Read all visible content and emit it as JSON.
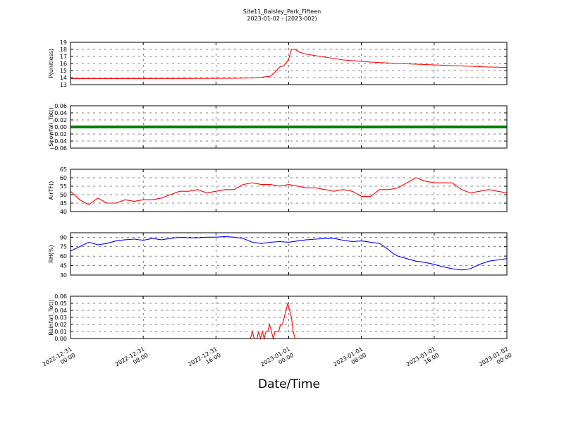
{
  "title": "Site11_Baisley_Park_Fifteen",
  "subtitle": "2023-01-02 - (2023-002)",
  "xlabel": "Date/Time",
  "x_ticks": [
    {
      "l1": "2022-12-31",
      "l2": "00:00"
    },
    {
      "l1": "2022-12-31",
      "l2": "08:00"
    },
    {
      "l1": "2022-12-31",
      "l2": "16:00"
    },
    {
      "l1": "2023-01-01",
      "l2": "00:00"
    },
    {
      "l1": "2023-01-01",
      "l2": "08:00"
    },
    {
      "l1": "2023-01-01",
      "l2": "16:00"
    },
    {
      "l1": "2023-01-02",
      "l2": "00:00"
    }
  ],
  "colors": {
    "red": "#ff0000",
    "green": "#008000",
    "blue": "#0000ff"
  },
  "chart_data": [
    {
      "type": "line",
      "ylabel": "P(unitless)",
      "xlim": [
        "2022-12-31 00:00",
        "2023-01-02 00:00"
      ],
      "ylim": [
        13,
        19
      ],
      "yticks": [
        "13",
        "14",
        "15",
        "16",
        "17",
        "18",
        "19"
      ],
      "grid": true,
      "color": "red",
      "series": [
        {
          "x_hours": [
            0,
            6,
            12,
            18,
            20,
            21,
            22,
            22.5,
            23,
            23.5,
            24,
            24.3,
            24.7,
            25.2,
            26,
            28,
            30,
            33,
            36,
            40,
            44,
            46,
            48
          ],
          "y": [
            13.85,
            13.85,
            13.87,
            13.9,
            13.95,
            14.05,
            14.2,
            14.8,
            15.5,
            15.7,
            16.6,
            18.0,
            18.0,
            17.6,
            17.3,
            16.9,
            16.5,
            16.2,
            16.0,
            15.8,
            15.6,
            15.5,
            15.45
          ]
        }
      ]
    },
    {
      "type": "line",
      "ylabel": "Snowfall_Tot()",
      "xlim": [
        "2022-12-31 00:00",
        "2023-01-02 00:00"
      ],
      "ylim": [
        -0.06,
        0.06
      ],
      "yticks": [
        "−0.06",
        "−0.04",
        "−0.02",
        "0.00",
        "0.02",
        "0.04",
        "0.06"
      ],
      "grid": true,
      "color": "green",
      "series": [
        {
          "x_hours": [
            0,
            48
          ],
          "y": [
            0,
            0
          ]
        }
      ]
    },
    {
      "type": "line",
      "ylabel": "AirTF()",
      "xlim": [
        "2022-12-31 00:00",
        "2023-01-02 00:00"
      ],
      "ylim": [
        40,
        65
      ],
      "yticks": [
        "40",
        "45",
        "50",
        "55",
        "60",
        "65"
      ],
      "grid": true,
      "color": "red",
      "series": [
        {
          "x_hours": [
            0,
            1,
            2,
            3,
            4,
            5,
            6,
            7,
            8,
            9,
            10,
            11,
            12,
            13,
            14,
            15,
            16,
            17,
            18,
            19,
            20,
            21,
            22,
            23,
            24,
            25,
            26,
            27,
            28,
            29,
            30,
            31,
            32,
            33,
            34,
            35,
            36,
            37,
            38,
            39,
            40,
            41,
            42,
            43,
            44,
            45,
            46,
            47,
            48
          ],
          "y": [
            52,
            47,
            44,
            48,
            45,
            45,
            47,
            46,
            47,
            47,
            48,
            50,
            52,
            52,
            53,
            51,
            52,
            53,
            53,
            56,
            57,
            56,
            56,
            55,
            56,
            55,
            54,
            54,
            53,
            52,
            53,
            52,
            49,
            49,
            53,
            53,
            54,
            57,
            60,
            58,
            57,
            57,
            57,
            53,
            51,
            52,
            53,
            52,
            51
          ]
        }
      ]
    },
    {
      "type": "line",
      "ylabel": "RH(%)",
      "xlim": [
        "2022-12-31 00:00",
        "2023-01-02 00:00"
      ],
      "ylim": [
        30,
        97
      ],
      "yticks": [
        "30",
        "45",
        "60",
        "75",
        "90"
      ],
      "grid": true,
      "color": "blue",
      "series": [
        {
          "x_hours": [
            0,
            1,
            2,
            3,
            4,
            5,
            6,
            7,
            8,
            9,
            10,
            11,
            12,
            13,
            14,
            15,
            16,
            17,
            18,
            19,
            20,
            21,
            22,
            23,
            24,
            25,
            26,
            27,
            28,
            29,
            30,
            31,
            32,
            33,
            34,
            35,
            35.5,
            36,
            37,
            38,
            39,
            40,
            41,
            42,
            43,
            44,
            45,
            46,
            47,
            48
          ],
          "y": [
            68,
            75,
            82,
            78,
            80,
            84,
            86,
            87,
            85,
            88,
            86,
            88,
            90,
            89,
            89,
            90,
            90,
            91,
            90,
            88,
            82,
            80,
            82,
            83,
            82,
            84,
            86,
            87,
            88,
            88,
            85,
            83,
            84,
            82,
            80,
            70,
            64,
            60,
            56,
            52,
            50,
            47,
            43,
            40,
            38,
            40,
            47,
            52,
            54,
            56
          ]
        }
      ]
    },
    {
      "type": "line",
      "ylabel": "Rainfall_Tot()",
      "xlim": [
        "2022-12-31 00:00",
        "2023-01-02 00:00"
      ],
      "ylim": [
        0,
        0.06
      ],
      "yticks": [
        "0.00",
        "0.01",
        "0.02",
        "0.03",
        "0.04",
        "0.05",
        "0.06"
      ],
      "grid": true,
      "color": "red",
      "series": [
        {
          "x_hours": [
            0,
            19.8,
            20,
            20.2,
            20.5,
            20.7,
            20.9,
            21.1,
            21.3,
            21.5,
            21.7,
            21.9,
            22.1,
            22.3,
            22.5,
            22.7,
            22.9,
            23.1,
            23.3,
            23.5,
            23.7,
            23.9,
            24.1,
            24.3,
            24.5,
            24.7,
            24.9,
            25.1,
            48
          ],
          "y": [
            0,
            0,
            0.01,
            0,
            0,
            0.01,
            0,
            0.01,
            0,
            0.01,
            0.01,
            0.02,
            0.01,
            0,
            0.01,
            0.01,
            0.01,
            0.02,
            0.02,
            0.03,
            0.04,
            0.05,
            0.04,
            0.03,
            0.01,
            0,
            0,
            0,
            0
          ]
        }
      ]
    }
  ]
}
